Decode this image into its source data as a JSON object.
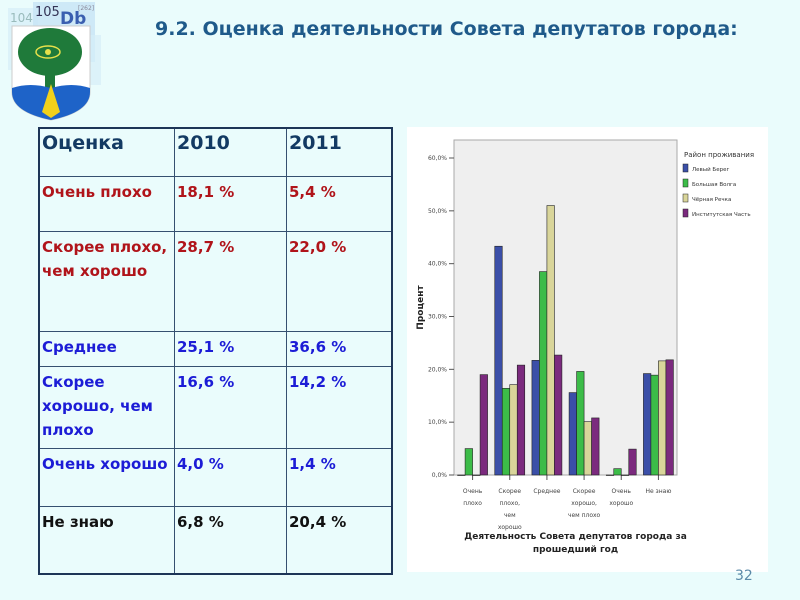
{
  "logo": {
    "text": "105 Db 104 [262]"
  },
  "title": "9.2. Оценка деятельности Совета депутатов города:",
  "table": {
    "headers": [
      "Оценка",
      "2010",
      "2011"
    ],
    "rows": [
      {
        "label": "Очень плохо",
        "v2010": "18,1 %",
        "v2011": "5,4 %",
        "tone": "red"
      },
      {
        "label": "Скорее плохо, чем хорошо",
        "v2010": "28,7 %",
        "v2011": "22,0 %",
        "tone": "red"
      },
      {
        "label": "Среднее",
        "v2010": "25,1 %",
        "v2011": "36,6 %",
        "tone": "blue"
      },
      {
        "label": "Скорее хорошо, чем плохо",
        "v2010": "16,6 %",
        "v2011": "14,2 %",
        "tone": "blue"
      },
      {
        "label": "Очень хорошо",
        "v2010": "4,0 %",
        "v2011": "1,4 %",
        "tone": "blue"
      },
      {
        "label": "Не знаю",
        "v2010": "6,8 %",
        "v2011": "20,4 %",
        "tone": "black"
      }
    ]
  },
  "chart_data": {
    "type": "bar",
    "title": "",
    "xlabel": "Деятельность Совета депутатов города за прошедший год",
    "ylabel": "Процент",
    "ylim": [
      0,
      60
    ],
    "yticks": [
      "0,0%",
      "10,0%",
      "20,0%",
      "30,0%",
      "40,0%",
      "50,0%",
      "60,0%"
    ],
    "categories": [
      [
        "Очень",
        "плохо"
      ],
      [
        "Скорее",
        "плохо,",
        "чем",
        "хорошо"
      ],
      [
        "Среднее"
      ],
      [
        "Скорее",
        "хорошо,",
        "чем плохо"
      ],
      [
        "Очень",
        "хорошо"
      ],
      [
        "Не знаю"
      ]
    ],
    "legend_title": "Район проживания",
    "legend_position": "top-right",
    "series": [
      {
        "name": "Левый Берег",
        "color": "#3b4fa8",
        "values": [
          0,
          43.3,
          21.7,
          15.6,
          0,
          19.2
        ]
      },
      {
        "name": "Большая Волга",
        "color": "#3cbc48",
        "values": [
          5.0,
          16.4,
          38.5,
          19.6,
          1.2,
          18.9
        ]
      },
      {
        "name": "Чёрная Речка",
        "color": "#d9d59a",
        "values": [
          0,
          17.1,
          51.0,
          10.1,
          0,
          21.6
        ]
      },
      {
        "name": "Институтская Часть",
        "color": "#7b2a7e",
        "values": [
          19.0,
          20.8,
          22.7,
          10.8,
          4.9,
          21.8
        ]
      }
    ]
  },
  "slide_number": "32"
}
